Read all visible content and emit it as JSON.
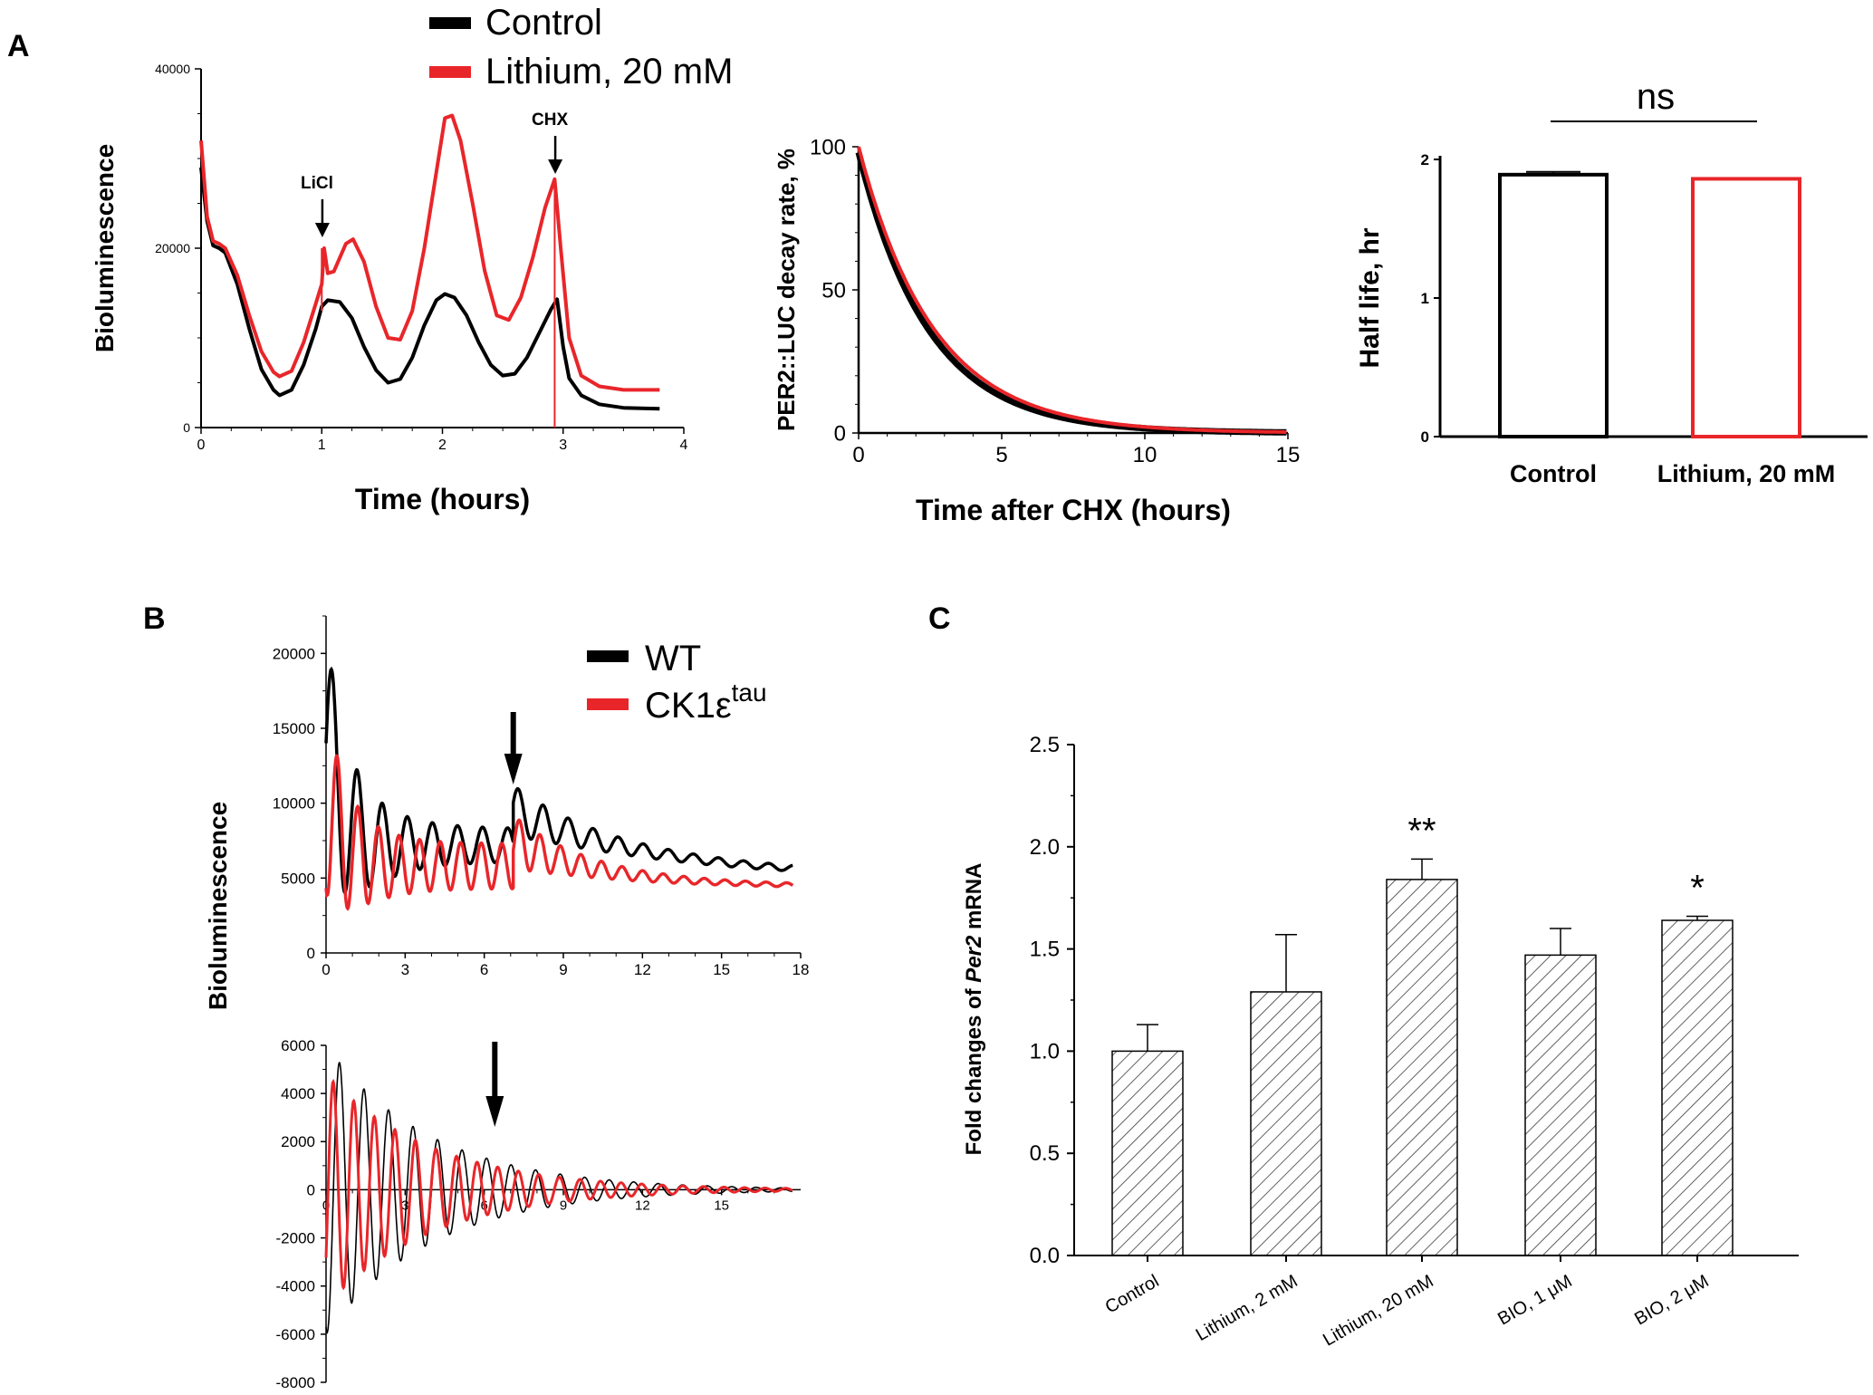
{
  "colors": {
    "control": "#000000",
    "lithium": "#e8262a",
    "axis": "#000000",
    "hatch": "#3a3a3a"
  },
  "panels": {
    "a": {
      "letter": "A"
    },
    "b": {
      "letter": "B"
    },
    "c": {
      "letter": "C"
    }
  },
  "legend_a": {
    "items": [
      {
        "label": "Control",
        "color": "#000000"
      },
      {
        "label": "Lithium, 20 mM",
        "color": "#e8262a"
      }
    ]
  },
  "legend_b": {
    "items": [
      {
        "label": "WT",
        "color": "#000000"
      },
      {
        "label": "CK1ε",
        "sup": "tau",
        "color": "#e8262a"
      }
    ]
  },
  "chart_data": [
    {
      "id": "a1",
      "type": "line",
      "xlabel": "Time (hours)",
      "ylabel": "Bioluminescence",
      "xlim": [
        0,
        4
      ],
      "ylim": [
        0,
        40000
      ],
      "xticks": [
        0,
        1,
        2,
        3,
        4
      ],
      "yticks": [
        0,
        20000,
        40000
      ],
      "annotations": [
        {
          "label": "LiCl",
          "x": 1.02
        },
        {
          "label": "CHX",
          "x": 2.95
        }
      ],
      "series": [
        {
          "name": "Control",
          "color": "#000000",
          "points": [
            [
              0.0,
              29000
            ],
            [
              0.05,
              23000
            ],
            [
              0.1,
              20300
            ],
            [
              0.15,
              20000
            ],
            [
              0.2,
              19500
            ],
            [
              0.3,
              16000
            ],
            [
              0.4,
              11000
            ],
            [
              0.5,
              6500
            ],
            [
              0.6,
              4200
            ],
            [
              0.65,
              3600
            ],
            [
              0.75,
              4200
            ],
            [
              0.85,
              7000
            ],
            [
              0.95,
              11000
            ],
            [
              1.0,
              13500
            ],
            [
              1.05,
              14200
            ],
            [
              1.15,
              14000
            ],
            [
              1.25,
              12200
            ],
            [
              1.35,
              9000
            ],
            [
              1.45,
              6400
            ],
            [
              1.55,
              5000
            ],
            [
              1.65,
              5400
            ],
            [
              1.75,
              7800
            ],
            [
              1.85,
              11400
            ],
            [
              1.95,
              14200
            ],
            [
              2.02,
              14900
            ],
            [
              2.1,
              14500
            ],
            [
              2.2,
              12500
            ],
            [
              2.3,
              9500
            ],
            [
              2.4,
              7000
            ],
            [
              2.5,
              5800
            ],
            [
              2.6,
              6000
            ],
            [
              2.7,
              7800
            ],
            [
              2.8,
              10500
            ],
            [
              2.9,
              13200
            ],
            [
              2.95,
              14300
            ],
            [
              3.0,
              9000
            ],
            [
              3.05,
              5500
            ],
            [
              3.15,
              3600
            ],
            [
              3.3,
              2600
            ],
            [
              3.5,
              2200
            ],
            [
              3.8,
              2100
            ]
          ]
        },
        {
          "name": "Lithium, 20 mM",
          "color": "#e8262a",
          "points": [
            [
              0.0,
              32000
            ],
            [
              0.05,
              23500
            ],
            [
              0.1,
              20800
            ],
            [
              0.15,
              20500
            ],
            [
              0.2,
              20000
            ],
            [
              0.3,
              17000
            ],
            [
              0.4,
              12500
            ],
            [
              0.5,
              8500
            ],
            [
              0.6,
              6200
            ],
            [
              0.65,
              5700
            ],
            [
              0.75,
              6300
            ],
            [
              0.85,
              9500
            ],
            [
              0.95,
              13800
            ],
            [
              1.0,
              16000
            ],
            [
              1.02,
              20000
            ],
            [
              1.05,
              17200
            ],
            [
              1.1,
              17400
            ],
            [
              1.2,
              20500
            ],
            [
              1.26,
              21000
            ],
            [
              1.35,
              18500
            ],
            [
              1.45,
              13500
            ],
            [
              1.55,
              10000
            ],
            [
              1.65,
              9800
            ],
            [
              1.75,
              13000
            ],
            [
              1.85,
              20000
            ],
            [
              1.95,
              28500
            ],
            [
              2.02,
              34500
            ],
            [
              2.08,
              34800
            ],
            [
              2.15,
              32000
            ],
            [
              2.25,
              25000
            ],
            [
              2.35,
              17500
            ],
            [
              2.45,
              12500
            ],
            [
              2.55,
              12000
            ],
            [
              2.65,
              14500
            ],
            [
              2.75,
              19000
            ],
            [
              2.85,
              24500
            ],
            [
              2.93,
              27700
            ],
            [
              2.98,
              20000
            ],
            [
              3.05,
              10000
            ],
            [
              3.15,
              5800
            ],
            [
              3.3,
              4600
            ],
            [
              3.5,
              4200
            ],
            [
              3.8,
              4200
            ]
          ]
        }
      ]
    },
    {
      "id": "a2",
      "type": "line",
      "xlabel": "Time after CHX (hours)",
      "ylabel": "PER2::LUC decay rate, %",
      "xlim": [
        0,
        15
      ],
      "ylim": [
        0,
        100
      ],
      "xticks": [
        0,
        5,
        10,
        15
      ],
      "yticks": [
        0,
        50,
        100
      ],
      "series": [
        {
          "name": "Control",
          "color": "#000000",
          "model": "exp_decay",
          "start": 98,
          "tau_hours": 2.45
        },
        {
          "name": "Lithium, 20 mM",
          "color": "#e8262a",
          "model": "exp_decay",
          "start": 100,
          "tau_hours": 2.6
        }
      ]
    },
    {
      "id": "a3",
      "type": "bar",
      "xlabel": "",
      "ylabel": "Half life, hr",
      "ylim": [
        0,
        2
      ],
      "yticks": [
        0,
        1,
        2
      ],
      "categories": [
        "Control",
        "Lithium, 20 mM"
      ],
      "values": [
        1.89,
        1.86
      ],
      "errors": [
        0.02,
        0
      ],
      "bar_colors": [
        "#000000",
        "#e8262a"
      ],
      "significance": "ns"
    },
    {
      "id": "b1",
      "type": "line",
      "xlabel": "",
      "ylabel": "Bioluminescence",
      "xlim": [
        0,
        18
      ],
      "ylim": [
        0,
        22500
      ],
      "xticks": [
        0,
        3,
        6,
        9,
        12,
        15,
        18
      ],
      "yticks": [
        0,
        5000,
        10000,
        15000,
        20000
      ],
      "arrow_x": 7.1,
      "series": [
        {
          "name": "WT",
          "color": "#000000",
          "model": "damped_osc",
          "segments": [
            {
              "t0": 0,
              "t1": 7.1,
              "base0": 14000,
              "base1": 7200,
              "baseTau": 0.6,
              "amp0": 8000,
              "amp1": 1100,
              "ampTau": 1.4,
              "period": 0.95,
              "phase": 0.25
            },
            {
              "t0": 7.1,
              "t1": 17.7,
              "base0": 9500,
              "base1": 5000,
              "baseTau": 5.5,
              "amp0": 1700,
              "amp1": 150,
              "ampTau": 3.0,
              "period": 0.95,
              "phase": 0.2
            }
          ]
        },
        {
          "name": "CK1εtau",
          "color": "#e8262a",
          "model": "damped_osc",
          "segments": [
            {
              "t0": 0,
              "t1": 7.1,
              "base0": 10500,
              "base1": 5800,
              "baseTau": 0.6,
              "amp0": 6500,
              "amp1": 1500,
              "ampTau": 1.2,
              "period": 0.78,
              "phase": 0.55
            },
            {
              "t0": 7.1,
              "t1": 17.7,
              "base0": 7400,
              "base1": 4400,
              "baseTau": 3.5,
              "amp0": 1800,
              "amp1": 100,
              "ampTau": 2.6,
              "period": 0.78,
              "phase": 0.3
            }
          ]
        }
      ]
    },
    {
      "id": "b2",
      "type": "line",
      "xlabel": "",
      "ylabel": "Bioluminescence",
      "xlim": [
        0,
        18
      ],
      "ylim": [
        -8000,
        6000
      ],
      "xticks": [
        0,
        3,
        6,
        9,
        12,
        15
      ],
      "yticks": [
        -8000,
        -6000,
        -4000,
        -2000,
        0,
        2000,
        4000,
        6000
      ],
      "arrow_x": 6.4,
      "series": [
        {
          "name": "WT",
          "color": "#000000",
          "model": "osc",
          "t1": 17.7,
          "amp0": 6000,
          "ampTau": 4.0,
          "period": 0.93,
          "phase": 0.7
        },
        {
          "name": "CK1εtau",
          "color": "#e8262a",
          "model": "osc",
          "t1": 17.7,
          "amp0": 4800,
          "ampTau": 4.0,
          "period": 0.78,
          "phase": 0.9
        }
      ]
    },
    {
      "id": "c",
      "type": "bar",
      "xlabel": "",
      "ylabel": "Fold changes of Per2 mRNA",
      "ylim": [
        0,
        2.5
      ],
      "yticks": [
        "0.0",
        "0.5",
        "1.0",
        "1.5",
        "2.0",
        "2.5"
      ],
      "categories": [
        "Control",
        "Lithium, 2 mM",
        "Lithium, 20 mM",
        "BIO, 1 μM",
        "BIO, 2 μM"
      ],
      "values": [
        1.0,
        1.29,
        1.84,
        1.47,
        1.64
      ],
      "errors": [
        0.13,
        0.28,
        0.1,
        0.13,
        0.02
      ],
      "significance": [
        "",
        "",
        "**",
        "",
        "*"
      ],
      "pattern": "hatched"
    }
  ]
}
